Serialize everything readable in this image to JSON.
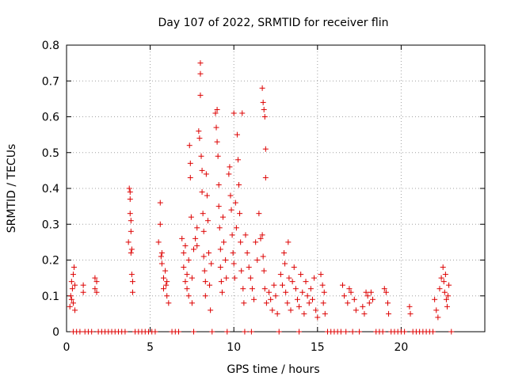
{
  "chart_data": {
    "type": "scatter",
    "title": "Day 107 of 2022, SRMTID for receiver flin",
    "xlabel": "GPS time / hours",
    "ylabel": "SRMTID / TECUs",
    "xlim": [
      0,
      25
    ],
    "ylim": [
      0,
      0.8
    ],
    "x_ticks": [
      0,
      5,
      10,
      15,
      20
    ],
    "x_tick_labels": [
      "0",
      "5",
      "10",
      "15",
      "20"
    ],
    "y_ticks": [
      0,
      0.1,
      0.2,
      0.3,
      0.4,
      0.5,
      0.6,
      0.7,
      0.8
    ],
    "y_tick_labels": [
      "0",
      "0.1",
      "0.2",
      "0.3",
      "0.4",
      "0.5",
      "0.6",
      "0.7",
      "0.8"
    ],
    "grid": true,
    "marker": "+",
    "color": "#dd0000",
    "series": [
      {
        "name": "SRMTID",
        "points": [
          [
            0.2,
            0.07
          ],
          [
            0.25,
            0.1
          ],
          [
            0.3,
            0.14
          ],
          [
            0.3,
            0.09
          ],
          [
            0.35,
            0.12
          ],
          [
            0.4,
            0.16
          ],
          [
            0.4,
            0.08
          ],
          [
            0.45,
            0.18
          ],
          [
            0.5,
            0.13
          ],
          [
            0.5,
            0.06
          ],
          [
            1.0,
            0.13
          ],
          [
            1.0,
            0.11
          ],
          [
            1.7,
            0.15
          ],
          [
            1.7,
            0.12
          ],
          [
            1.8,
            0.14
          ],
          [
            1.8,
            0.11
          ],
          [
            3.7,
            0.25
          ],
          [
            3.75,
            0.4
          ],
          [
            3.8,
            0.39
          ],
          [
            3.8,
            0.37
          ],
          [
            3.8,
            0.33
          ],
          [
            3.85,
            0.31
          ],
          [
            3.85,
            0.28
          ],
          [
            3.9,
            0.23
          ],
          [
            3.9,
            0.16
          ],
          [
            3.95,
            0.14
          ],
          [
            3.95,
            0.11
          ],
          [
            3.85,
            0.22
          ],
          [
            5.5,
            0.25
          ],
          [
            5.6,
            0.36
          ],
          [
            5.6,
            0.3
          ],
          [
            5.7,
            0.22
          ],
          [
            5.7,
            0.19
          ],
          [
            5.8,
            0.15
          ],
          [
            5.8,
            0.12
          ],
          [
            5.9,
            0.17
          ],
          [
            6.0,
            0.14
          ],
          [
            6.0,
            0.1
          ],
          [
            6.1,
            0.08
          ],
          [
            5.95,
            0.13
          ],
          [
            5.65,
            0.21
          ],
          [
            6.9,
            0.26
          ],
          [
            7.0,
            0.22
          ],
          [
            7.0,
            0.18
          ],
          [
            7.1,
            0.14
          ],
          [
            7.1,
            0.24
          ],
          [
            7.2,
            0.16
          ],
          [
            7.2,
            0.12
          ],
          [
            7.3,
            0.2
          ],
          [
            7.3,
            0.1
          ],
          [
            7.35,
            0.52
          ],
          [
            7.4,
            0.47
          ],
          [
            7.4,
            0.43
          ],
          [
            7.45,
            0.32
          ],
          [
            7.5,
            0.15
          ],
          [
            7.5,
            0.08
          ],
          [
            7.6,
            0.23
          ],
          [
            7.7,
            0.26
          ],
          [
            7.8,
            0.29
          ],
          [
            7.8,
            0.24
          ],
          [
            7.9,
            0.56
          ],
          [
            7.95,
            0.54
          ],
          [
            8.0,
            0.75
          ],
          [
            8.0,
            0.72
          ],
          [
            8.0,
            0.66
          ],
          [
            8.05,
            0.49
          ],
          [
            8.1,
            0.45
          ],
          [
            8.1,
            0.39
          ],
          [
            8.15,
            0.33
          ],
          [
            8.2,
            0.28
          ],
          [
            8.2,
            0.21
          ],
          [
            8.25,
            0.17
          ],
          [
            8.3,
            0.14
          ],
          [
            8.3,
            0.1
          ],
          [
            8.35,
            0.44
          ],
          [
            8.4,
            0.38
          ],
          [
            8.45,
            0.31
          ],
          [
            8.5,
            0.22
          ],
          [
            8.55,
            0.13
          ],
          [
            8.6,
            0.06
          ],
          [
            8.65,
            0.19
          ],
          [
            8.9,
            0.61
          ],
          [
            8.95,
            0.57
          ],
          [
            9.0,
            0.62
          ],
          [
            9.0,
            0.53
          ],
          [
            9.05,
            0.49
          ],
          [
            9.1,
            0.41
          ],
          [
            9.1,
            0.35
          ],
          [
            9.15,
            0.29
          ],
          [
            9.2,
            0.23
          ],
          [
            9.2,
            0.18
          ],
          [
            9.25,
            0.14
          ],
          [
            9.3,
            0.11
          ],
          [
            9.35,
            0.32
          ],
          [
            9.4,
            0.25
          ],
          [
            9.5,
            0.2
          ],
          [
            9.55,
            0.15
          ],
          [
            9.7,
            0.44
          ],
          [
            9.75,
            0.46
          ],
          [
            9.8,
            0.38
          ],
          [
            9.85,
            0.34
          ],
          [
            9.9,
            0.27
          ],
          [
            9.95,
            0.22
          ],
          [
            10.0,
            0.61
          ],
          [
            10.0,
            0.19
          ],
          [
            10.05,
            0.15
          ],
          [
            10.1,
            0.36
          ],
          [
            10.15,
            0.29
          ],
          [
            10.2,
            0.55
          ],
          [
            10.25,
            0.48
          ],
          [
            10.3,
            0.41
          ],
          [
            10.35,
            0.33
          ],
          [
            10.4,
            0.25
          ],
          [
            10.45,
            0.17
          ],
          [
            10.5,
            0.61
          ],
          [
            10.55,
            0.12
          ],
          [
            10.6,
            0.08
          ],
          [
            10.7,
            0.27
          ],
          [
            10.8,
            0.22
          ],
          [
            10.9,
            0.18
          ],
          [
            11.0,
            0.15
          ],
          [
            11.1,
            0.12
          ],
          [
            11.2,
            0.09
          ],
          [
            11.3,
            0.25
          ],
          [
            11.4,
            0.2
          ],
          [
            11.5,
            0.33
          ],
          [
            11.6,
            0.26
          ],
          [
            11.7,
            0.68
          ],
          [
            11.75,
            0.64
          ],
          [
            11.8,
            0.62
          ],
          [
            11.85,
            0.6
          ],
          [
            11.9,
            0.51
          ],
          [
            11.9,
            0.43
          ],
          [
            11.7,
            0.27
          ],
          [
            11.75,
            0.21
          ],
          [
            11.8,
            0.17
          ],
          [
            11.85,
            0.12
          ],
          [
            11.95,
            0.08
          ],
          [
            12.1,
            0.11
          ],
          [
            12.2,
            0.09
          ],
          [
            12.3,
            0.06
          ],
          [
            12.4,
            0.13
          ],
          [
            12.5,
            0.1
          ],
          [
            12.6,
            0.05
          ],
          [
            12.8,
            0.16
          ],
          [
            12.9,
            0.13
          ],
          [
            13.0,
            0.22
          ],
          [
            13.05,
            0.19
          ],
          [
            13.1,
            0.11
          ],
          [
            13.2,
            0.08
          ],
          [
            13.25,
            0.25
          ],
          [
            13.3,
            0.15
          ],
          [
            13.4,
            0.06
          ],
          [
            13.5,
            0.14
          ],
          [
            13.6,
            0.18
          ],
          [
            13.7,
            0.12
          ],
          [
            13.8,
            0.09
          ],
          [
            13.9,
            0.07
          ],
          [
            14.0,
            0.16
          ],
          [
            14.1,
            0.11
          ],
          [
            14.2,
            0.05
          ],
          [
            14.3,
            0.14
          ],
          [
            14.4,
            0.1
          ],
          [
            14.5,
            0.08
          ],
          [
            14.6,
            0.12
          ],
          [
            14.7,
            0.09
          ],
          [
            14.8,
            0.15
          ],
          [
            14.9,
            0.06
          ],
          [
            15.0,
            0.04
          ],
          [
            15.2,
            0.16
          ],
          [
            15.3,
            0.13
          ],
          [
            15.35,
            0.08
          ],
          [
            15.4,
            0.11
          ],
          [
            15.45,
            0.05
          ],
          [
            16.5,
            0.13
          ],
          [
            16.6,
            0.1
          ],
          [
            16.8,
            0.08
          ],
          [
            16.9,
            0.12
          ],
          [
            17.0,
            0.11
          ],
          [
            17.2,
            0.09
          ],
          [
            17.3,
            0.06
          ],
          [
            17.7,
            0.07
          ],
          [
            17.8,
            0.05
          ],
          [
            17.9,
            0.11
          ],
          [
            18.0,
            0.1
          ],
          [
            18.1,
            0.08
          ],
          [
            18.2,
            0.11
          ],
          [
            18.3,
            0.09
          ],
          [
            19.0,
            0.12
          ],
          [
            19.1,
            0.11
          ],
          [
            19.2,
            0.08
          ],
          [
            19.25,
            0.05
          ],
          [
            20.5,
            0.07
          ],
          [
            20.55,
            0.05
          ],
          [
            22.0,
            0.09
          ],
          [
            22.1,
            0.06
          ],
          [
            22.2,
            0.04
          ],
          [
            22.3,
            0.12
          ],
          [
            22.4,
            0.15
          ],
          [
            22.5,
            0.18
          ],
          [
            22.55,
            0.14
          ],
          [
            22.6,
            0.11
          ],
          [
            22.65,
            0.16
          ],
          [
            22.7,
            0.09
          ],
          [
            22.75,
            0.07
          ],
          [
            22.8,
            0.1
          ],
          [
            22.85,
            0.13
          ]
        ]
      }
    ],
    "zero_markers_x": [
      0.4,
      0.6,
      0.8,
      1.1,
      1.3,
      1.5,
      1.9,
      2.1,
      2.3,
      2.5,
      2.7,
      2.9,
      3.1,
      3.3,
      3.5,
      4.1,
      4.3,
      4.5,
      4.7,
      4.9,
      5.1,
      5.3,
      6.3,
      6.5,
      6.7,
      7.6,
      8.7,
      9.6,
      10.65,
      11.05,
      12.7,
      13.9,
      15.6,
      15.8,
      16.0,
      16.2,
      16.4,
      16.7,
      17.1,
      17.5,
      18.5,
      18.7,
      18.9,
      19.4,
      19.6,
      19.8,
      20.0,
      20.2,
      20.7,
      20.9,
      21.1,
      21.3,
      21.5,
      21.7,
      21.9,
      23.0
    ]
  }
}
